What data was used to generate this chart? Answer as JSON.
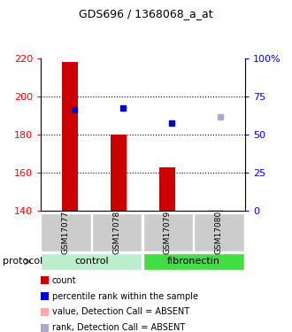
{
  "title": "GDS696 / 1368068_a_at",
  "samples": [
    "GSM17077",
    "GSM17078",
    "GSM17079",
    "GSM17080"
  ],
  "bar_bottoms": [
    140,
    140,
    140,
    140
  ],
  "bar_tops": [
    218,
    180,
    163,
    140.5
  ],
  "bar_color": "#cc0000",
  "absent_bar_color": "#ffaaaa",
  "dot_values": [
    193,
    194,
    186,
    null
  ],
  "dot_absent_values": [
    null,
    null,
    null,
    189
  ],
  "dot_color": "#0000cc",
  "dot_absent_color": "#aaaacc",
  "ylim": [
    140,
    220
  ],
  "y_left_ticks": [
    140,
    160,
    180,
    200,
    220
  ],
  "y_right_ticks": [
    0,
    25,
    50,
    75,
    100
  ],
  "y_right_labels": [
    "0",
    "25",
    "50",
    "75",
    "100%"
  ],
  "dotted_lines": [
    200,
    180,
    160
  ],
  "control_color": "#bbeecc",
  "fibronectin_color": "#44dd44",
  "sample_box_color": "#cccccc",
  "legend_items": [
    {
      "color": "#cc0000",
      "label": "count"
    },
    {
      "color": "#0000cc",
      "label": "percentile rank within the sample"
    },
    {
      "color": "#ffaaaa",
      "label": "value, Detection Call = ABSENT"
    },
    {
      "color": "#aaaacc",
      "label": "rank, Detection Call = ABSENT"
    }
  ]
}
